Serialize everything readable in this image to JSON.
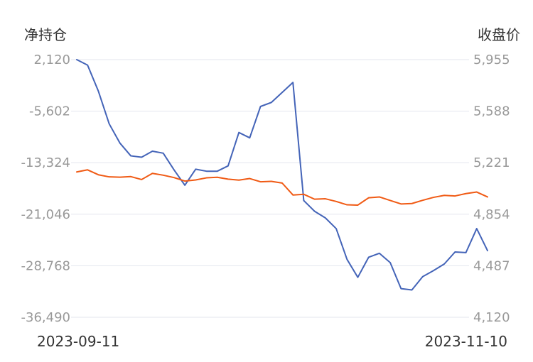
{
  "chart_data": {
    "type": "line",
    "left_axis_title": "净持仓",
    "right_axis_title": "收盘价",
    "left_ticks": [
      "2,120",
      "-5,602",
      "-13,324",
      "-21,046",
      "-28,768",
      "-36,490"
    ],
    "right_ticks": [
      "5,955",
      "5,588",
      "5,221",
      "4,854",
      "4,487",
      "4,120"
    ],
    "x_start_label": "2023-09-11",
    "x_end_label": "2023-11-10",
    "left_range": [
      -36490,
      2120
    ],
    "right_range": [
      4120,
      5955
    ],
    "grid": true,
    "series": [
      {
        "axis": "left",
        "color": "#4464b8",
        "values": [
          2120,
          1300,
          -2600,
          -7500,
          -10400,
          -12300,
          -12500,
          -11600,
          -11900,
          -14400,
          -16700,
          -14300,
          -14600,
          -14600,
          -13800,
          -8800,
          -9600,
          -4900,
          -4300,
          -2800,
          -1300,
          -19000,
          -20600,
          -21600,
          -23200,
          -27800,
          -30500,
          -27500,
          -26900,
          -28300,
          -32200,
          -32400,
          -30400,
          -29500,
          -28500,
          -26700,
          -26800,
          -23200,
          -26500
        ]
      },
      {
        "axis": "right",
        "color": "#f05a14",
        "values": [
          5155,
          5170,
          5135,
          5120,
          5118,
          5122,
          5101,
          5145,
          5132,
          5115,
          5090,
          5098,
          5113,
          5117,
          5104,
          5097,
          5108,
          5085,
          5088,
          5076,
          4991,
          4996,
          4961,
          4964,
          4945,
          4921,
          4919,
          4971,
          4977,
          4952,
          4927,
          4930,
          4953,
          4974,
          4988,
          4984,
          5001,
          5012,
          4977
        ]
      }
    ]
  }
}
